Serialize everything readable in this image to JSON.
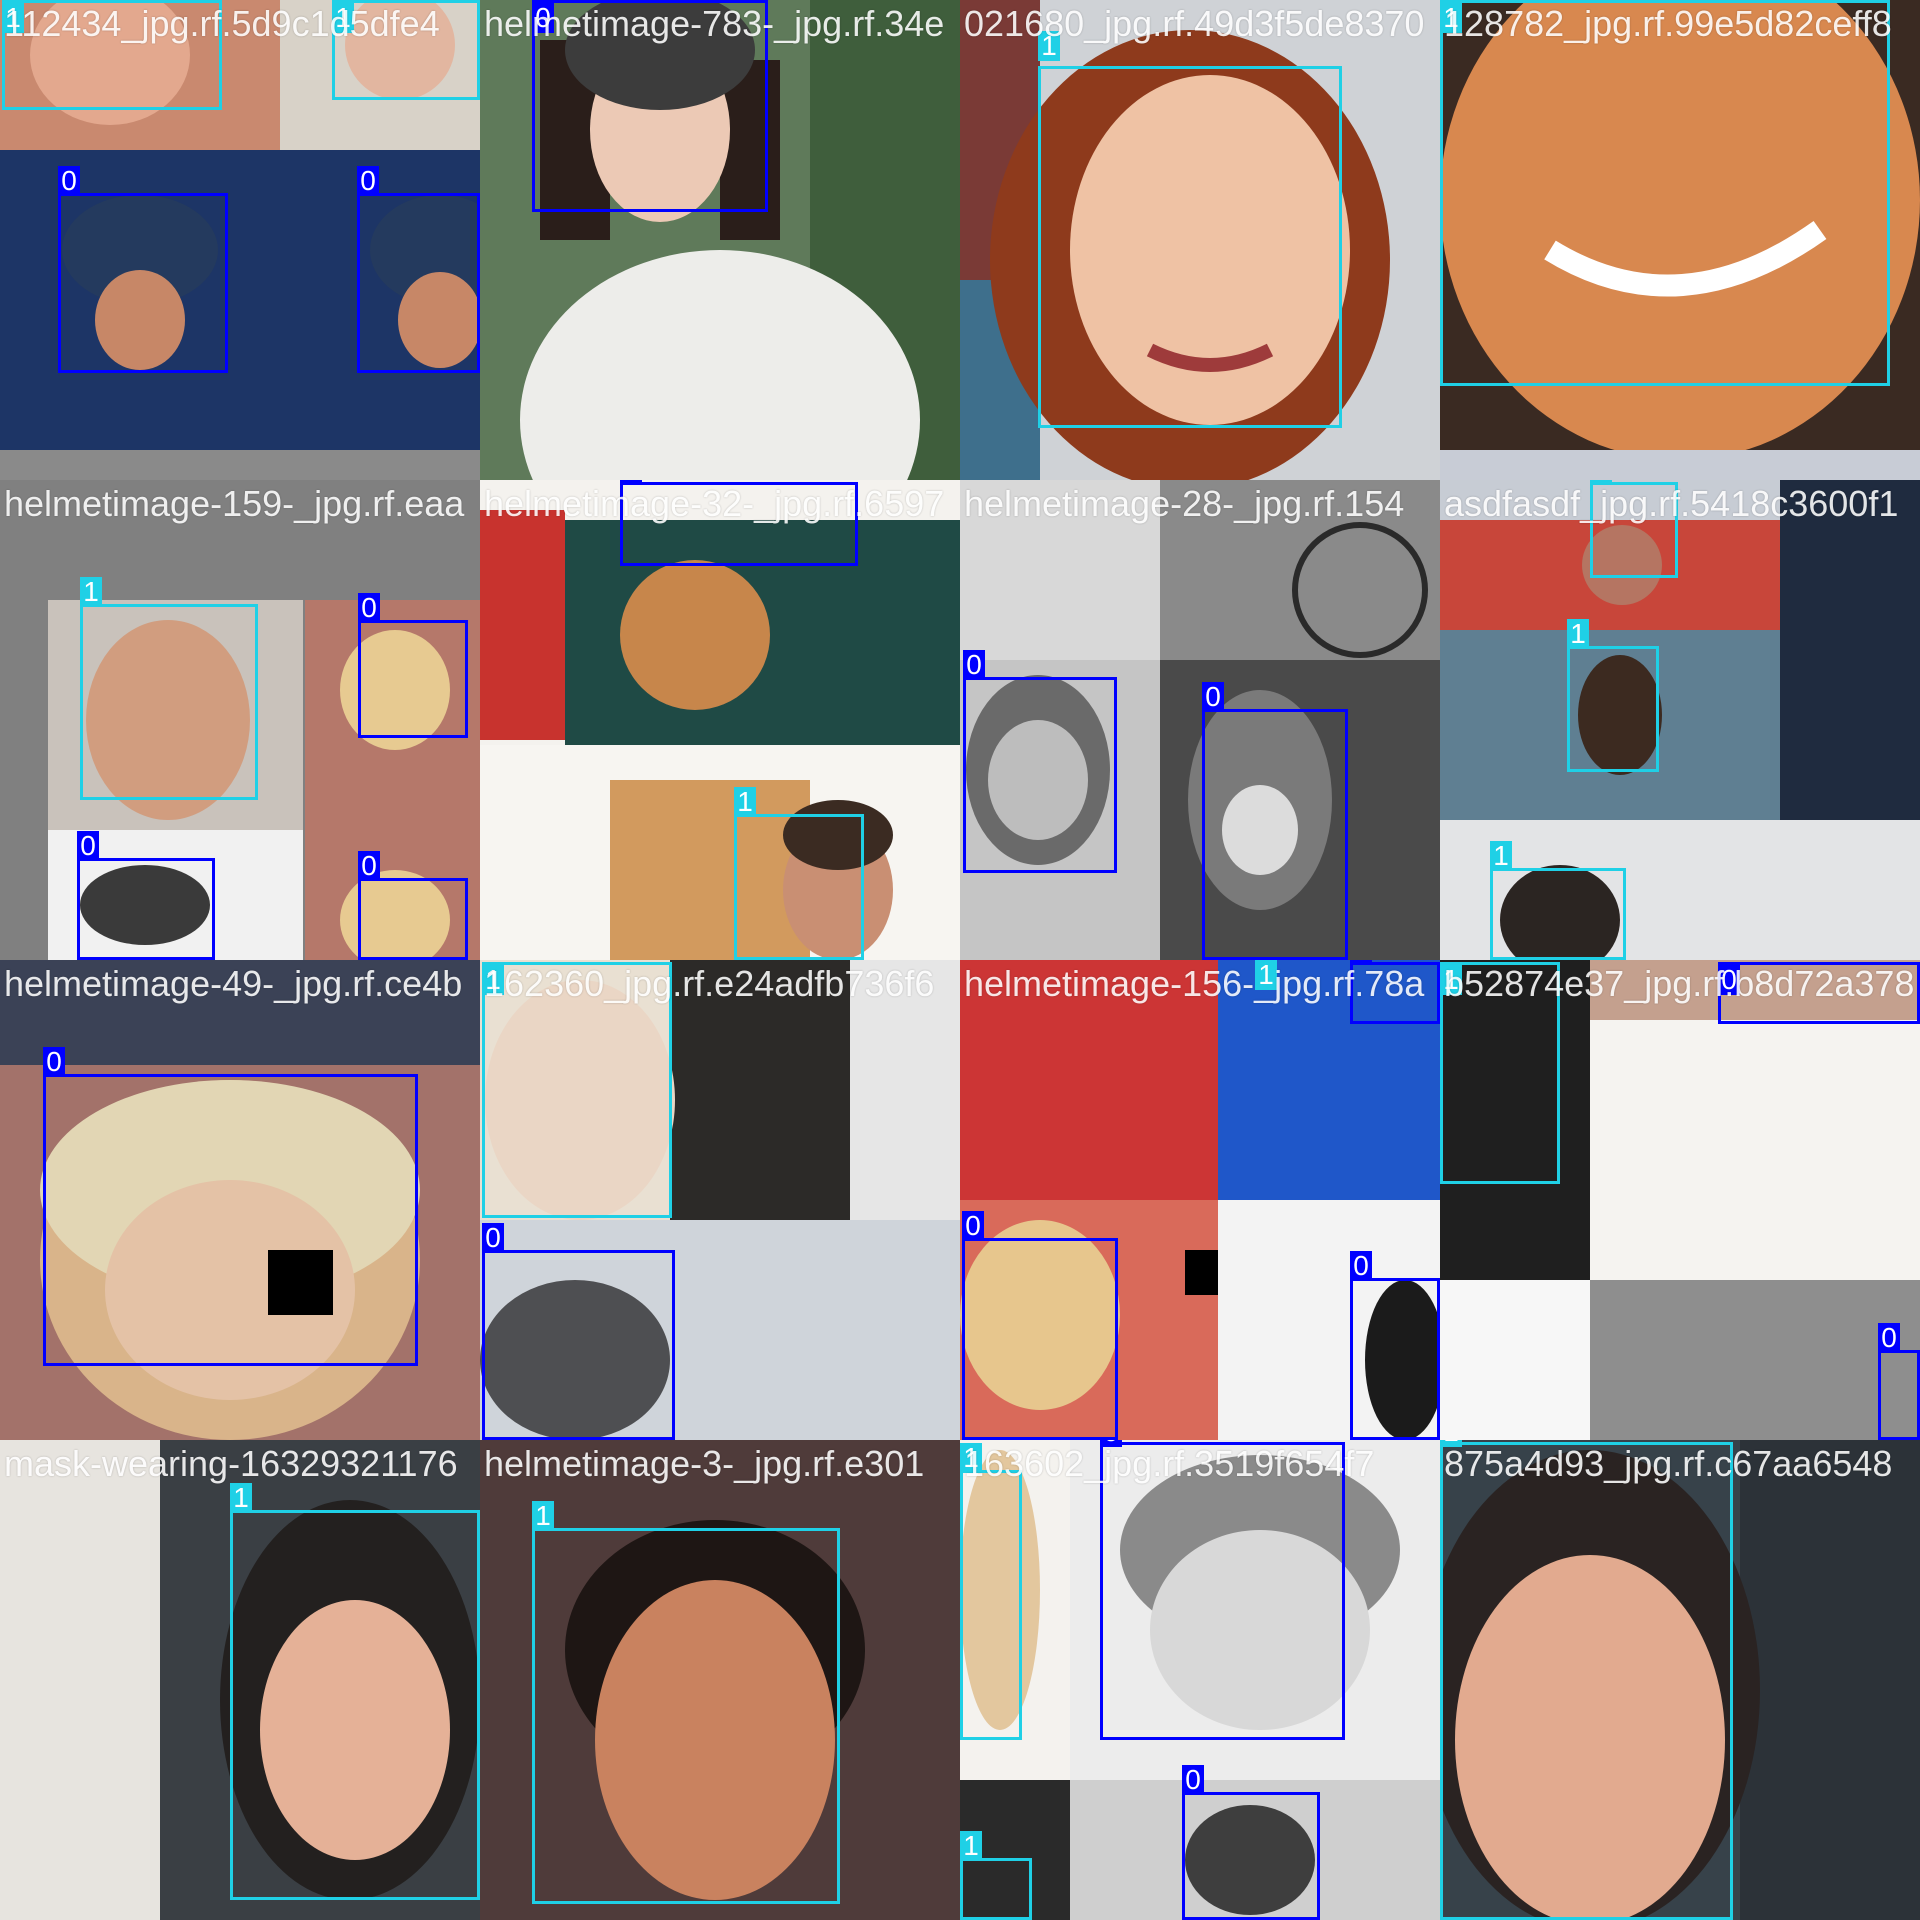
{
  "colors": {
    "class_0_box": "#0000ff",
    "class_1_box": "#1fd0e6",
    "caption_text": "#ffffff"
  },
  "tiles": [
    {
      "caption": "112434_jpg.rf.5d9c1d5dfe4",
      "labels": [
        "1",
        "1",
        "0",
        "0"
      ]
    },
    {
      "caption": "helmetimage-783-_jpg.rf.34e",
      "labels": [
        "0"
      ]
    },
    {
      "caption": "021680_jpg.rf.49d3f5de8370",
      "labels": [
        "1"
      ]
    },
    {
      "caption": "128782_jpg.rf.99e5d82ceff8",
      "labels": [
        "1"
      ]
    },
    {
      "caption": "helmetimage-159-_jpg.rf.eaa",
      "labels": [
        "1",
        "0",
        "0",
        "0"
      ]
    },
    {
      "caption": "helmetimage-32-_jpg.rf.6597",
      "labels": [
        "0",
        "1"
      ]
    },
    {
      "caption": "helmetimage-28-_jpg.rf.154",
      "labels": [
        "0",
        "0"
      ]
    },
    {
      "caption": "asdfasdf_jpg.rf.5418c3600f1",
      "labels": [
        "1",
        "1",
        "1"
      ]
    },
    {
      "caption": "helmetimage-49-_jpg.rf.ce4b",
      "labels": [
        "0"
      ]
    },
    {
      "caption": "162360_jpg.rf.e24adfb736f6",
      "labels": [
        "1",
        "0"
      ]
    },
    {
      "caption": "helmetimage-156-_jpg.rf.78a",
      "labels": [
        "0",
        "0",
        "0",
        "1"
      ]
    },
    {
      "caption": "b52874e37_jpg.rf.b8d72a378",
      "labels": [
        "1",
        "0",
        "0"
      ]
    },
    {
      "caption": "mask-wearing-16329321176",
      "labels": [
        "1"
      ]
    },
    {
      "caption": "helmetimage-3-_jpg.rf.e301",
      "labels": [
        "1"
      ]
    },
    {
      "caption": "163602_jpg.rf.3519f654f7",
      "labels": [
        "1",
        "0",
        "0",
        "1"
      ]
    },
    {
      "caption": "875a4d93_jpg.rf.c67aa6548",
      "labels": [
        "1"
      ]
    }
  ]
}
